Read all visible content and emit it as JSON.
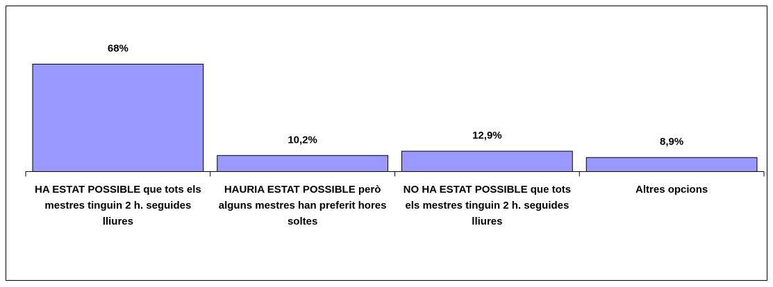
{
  "chart_data": {
    "type": "bar",
    "categories": [
      "HA ESTAT POSSIBLE que tots els mestres tinguin 2 h. seguides lliures",
      "HAURIA ESTAT POSSIBLE però alguns mestres han preferit hores soltes",
      "NO HA ESTAT POSSIBLE que tots els mestres tinguin 2 h. seguides lliures",
      "Altres opcions"
    ],
    "values": [
      68,
      10.2,
      12.9,
      8.9
    ],
    "value_labels": [
      "68%",
      "10,2%",
      "12,9%",
      "8,9%"
    ],
    "color": "#9999ff"
  }
}
